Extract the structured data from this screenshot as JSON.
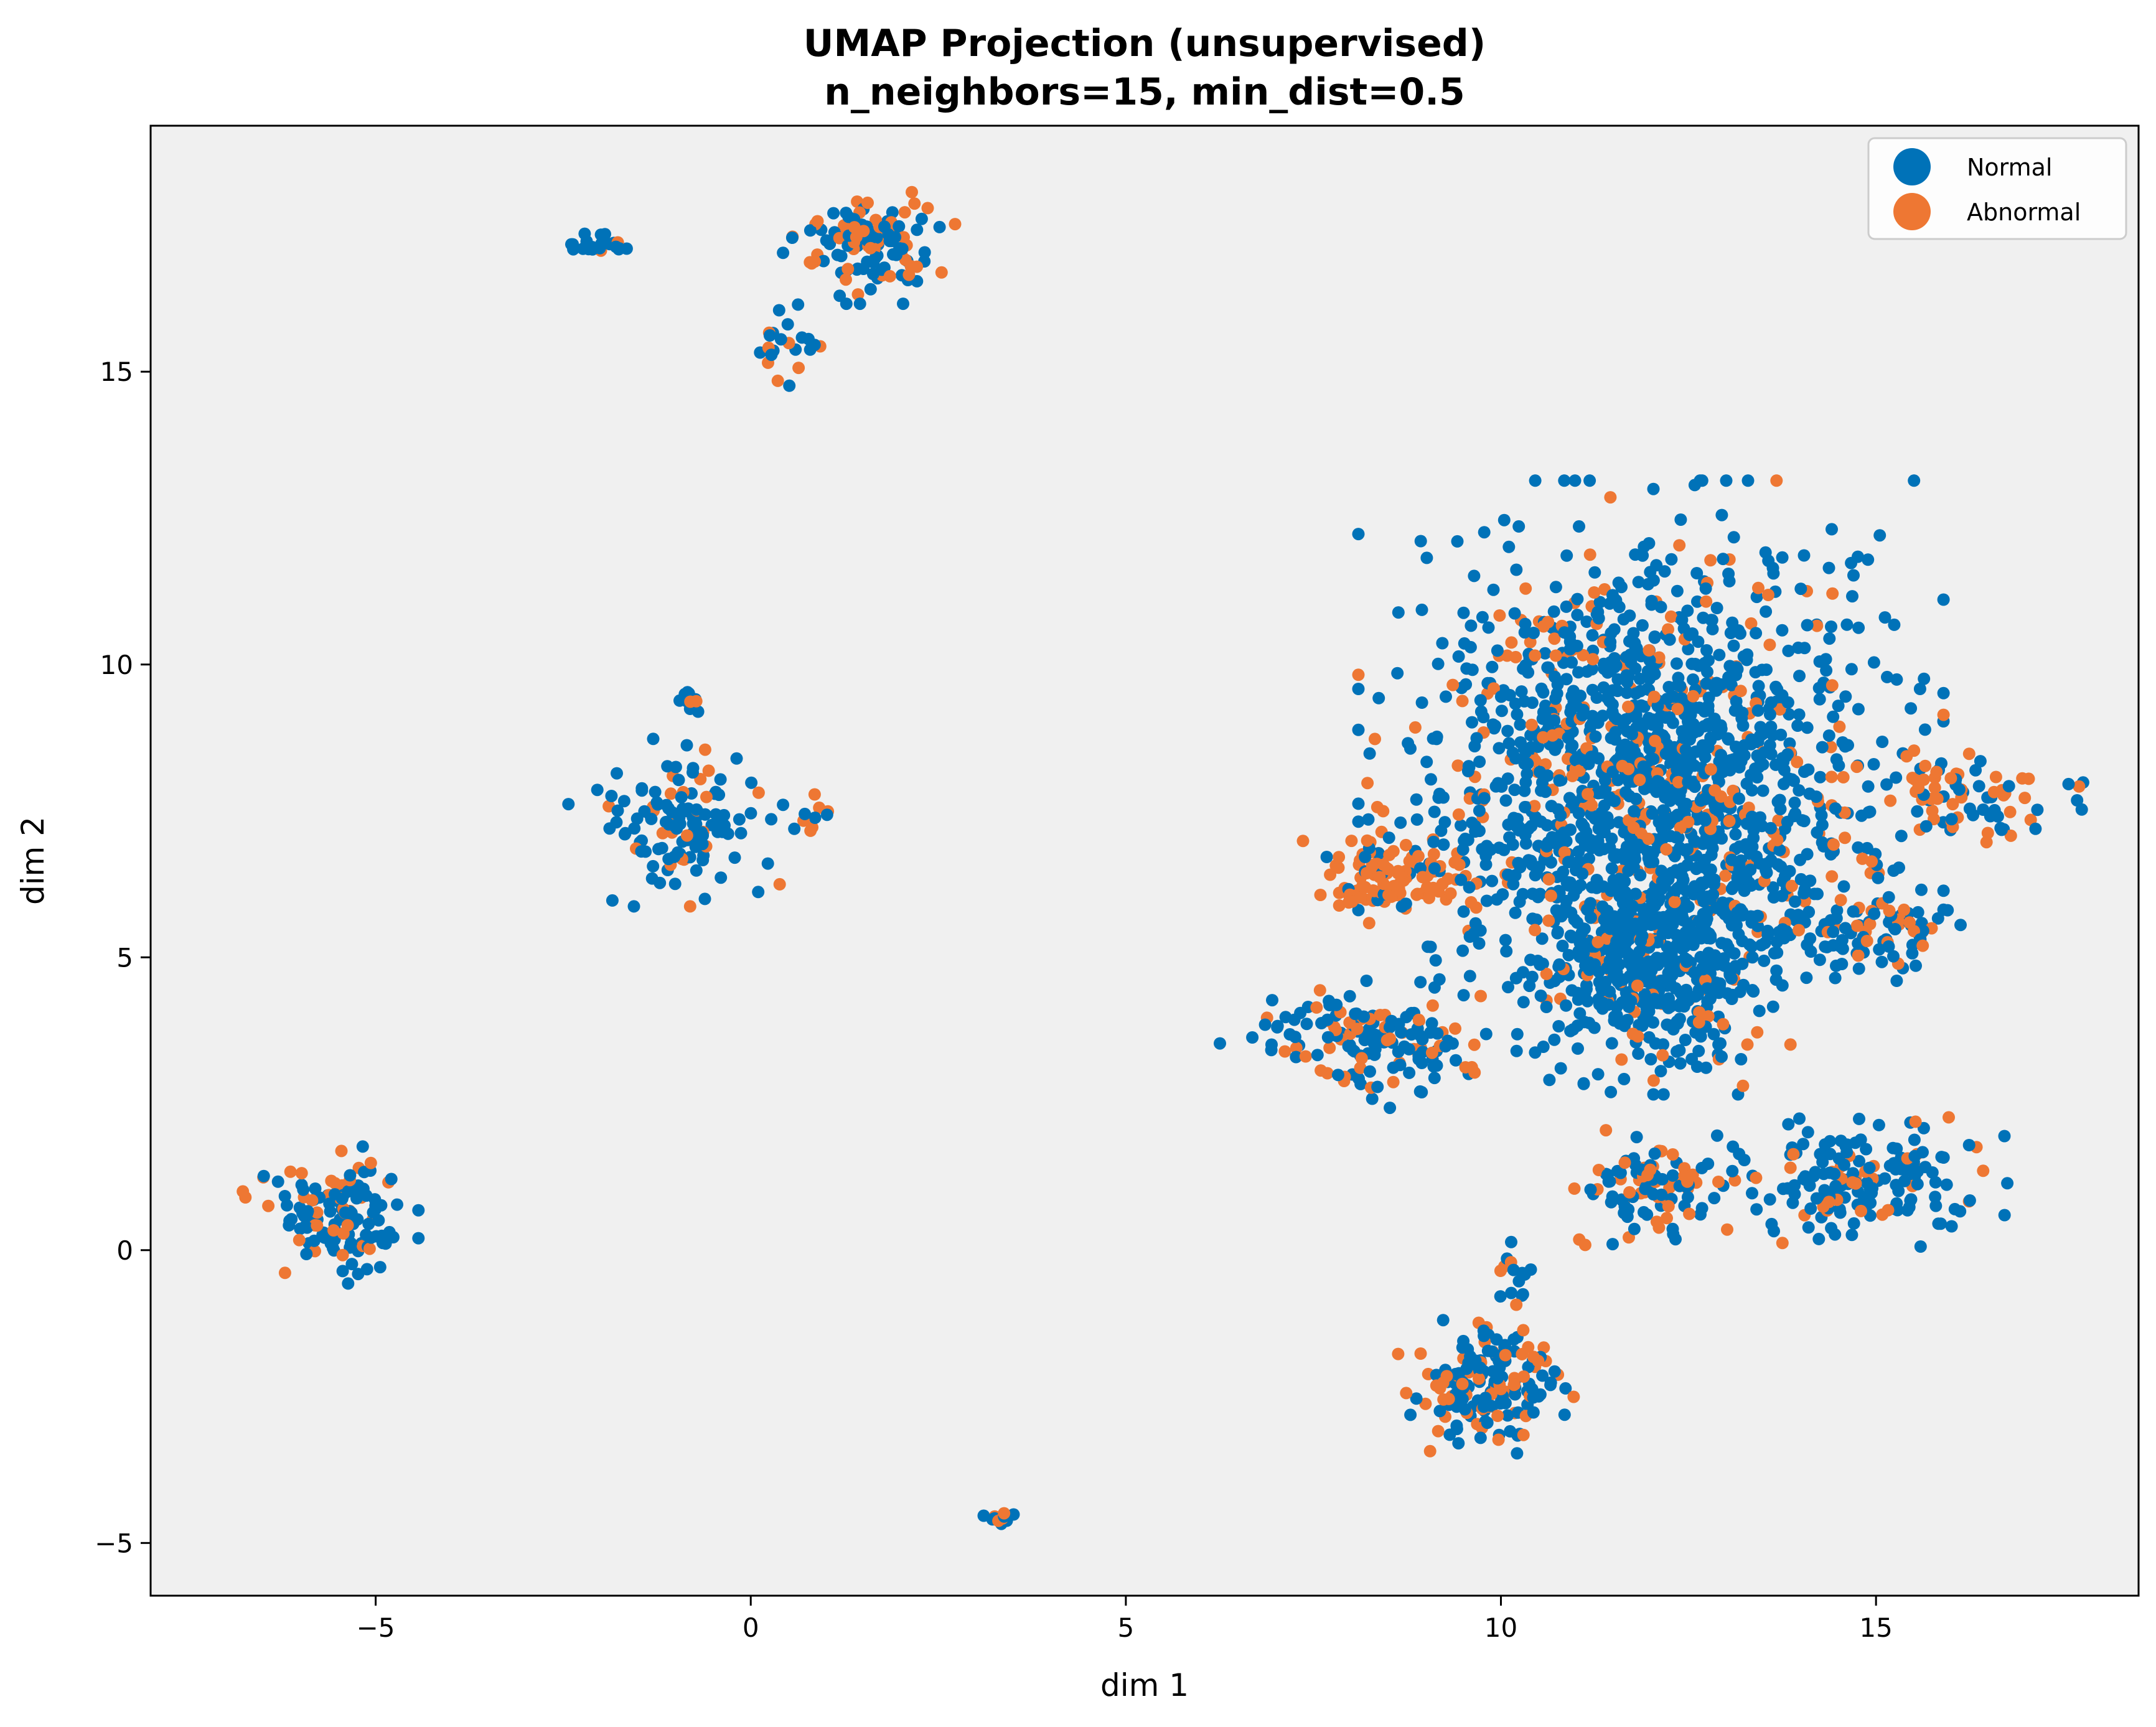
{
  "chart_data": {
    "type": "scatter",
    "title": "UMAP Projection (unsupervised)",
    "subtitle": "n_neighbors=15, min_dist=0.5",
    "xlabel": "dim 1",
    "ylabel": "dim 2",
    "xlim": [
      -8,
      18.5
    ],
    "ylim": [
      -5.9,
      19.2
    ],
    "xticks": [
      -5,
      0,
      5,
      10,
      15
    ],
    "xtick_labels": [
      "−5",
      "0",
      "5",
      "10",
      "15"
    ],
    "yticks": [
      -5,
      0,
      5,
      10,
      15
    ],
    "ytick_labels": [
      "−5",
      "0",
      "5",
      "10",
      "15"
    ],
    "grid": false,
    "legend_position": "top-right",
    "background_color": "#f0f0f0",
    "series": [
      {
        "name": "Normal",
        "color": "#0072b8"
      },
      {
        "name": "Abnormal",
        "color": "#ee7733"
      }
    ],
    "clusters": [
      {
        "cx": -5.6,
        "cy": 0.6,
        "sx": 0.45,
        "sy": 0.45,
        "n": 130,
        "abnormal": 0.25
      },
      {
        "cx": -2.0,
        "cy": 17.15,
        "sx": 0.2,
        "sy": 0.08,
        "n": 22,
        "abnormal": 0.05
      },
      {
        "cx": 1.6,
        "cy": 17.2,
        "sx": 0.45,
        "sy": 0.4,
        "n": 120,
        "abnormal": 0.3
      },
      {
        "cx": 0.45,
        "cy": 15.4,
        "sx": 0.25,
        "sy": 0.3,
        "n": 22,
        "abnormal": 0.4
      },
      {
        "cx": -1.0,
        "cy": 7.3,
        "sx": 0.55,
        "sy": 0.55,
        "n": 130,
        "abnormal": 0.25
      },
      {
        "cx": -0.85,
        "cy": 9.4,
        "sx": 0.1,
        "sy": 0.15,
        "n": 10,
        "abnormal": 0.3
      },
      {
        "cx": 0.85,
        "cy": 7.5,
        "sx": 0.15,
        "sy": 0.15,
        "n": 10,
        "abnormal": 0.2
      },
      {
        "cx": 3.3,
        "cy": -4.6,
        "sx": 0.1,
        "sy": 0.08,
        "n": 12,
        "abnormal": 0.3
      },
      {
        "cx": 12.0,
        "cy": 8.2,
        "sx": 1.5,
        "sy": 1.9,
        "n": 1500,
        "abnormal": 0.18
      },
      {
        "cx": 12.0,
        "cy": 5.0,
        "sx": 0.8,
        "sy": 0.9,
        "n": 500,
        "abnormal": 0.12
      },
      {
        "cx": 8.5,
        "cy": 6.35,
        "sx": 0.45,
        "sy": 0.35,
        "n": 110,
        "abnormal": 0.88
      },
      {
        "cx": 8.3,
        "cy": 3.6,
        "sx": 0.8,
        "sy": 0.45,
        "n": 150,
        "abnormal": 0.25
      },
      {
        "cx": 9.8,
        "cy": -2.3,
        "sx": 0.45,
        "sy": 0.45,
        "n": 170,
        "abnormal": 0.3
      },
      {
        "cx": 10.2,
        "cy": -0.6,
        "sx": 0.12,
        "sy": 0.35,
        "n": 15,
        "abnormal": 0.2
      },
      {
        "cx": 12.0,
        "cy": 1.05,
        "sx": 0.5,
        "sy": 0.4,
        "n": 100,
        "abnormal": 0.3
      },
      {
        "cx": 14.8,
        "cy": 1.2,
        "sx": 0.75,
        "sy": 0.45,
        "n": 170,
        "abnormal": 0.2
      },
      {
        "cx": 15.1,
        "cy": 5.4,
        "sx": 0.45,
        "sy": 0.4,
        "n": 80,
        "abnormal": 0.35
      },
      {
        "cx": 16.2,
        "cy": 7.7,
        "sx": 0.7,
        "sy": 0.4,
        "n": 80,
        "abnormal": 0.4
      }
    ]
  }
}
